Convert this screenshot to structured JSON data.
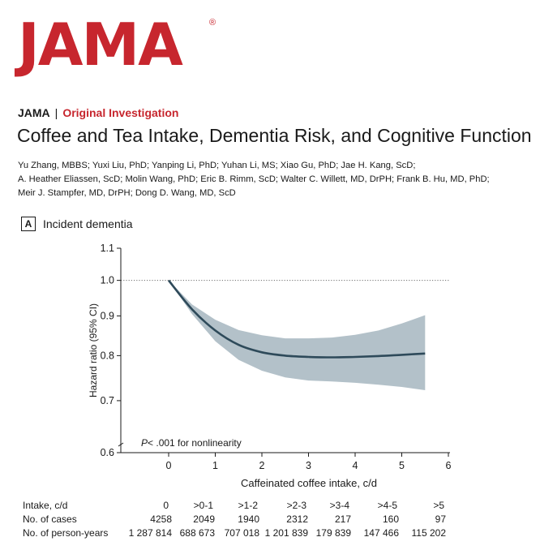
{
  "logo": {
    "text": "JAMA",
    "reg": "®"
  },
  "header": {
    "journal": "JAMA",
    "separator": "|",
    "article_type": "Original Investigation"
  },
  "title": "Coffee and Tea Intake, Dementia Risk, and Cognitive Function",
  "authors": [
    "Yu Zhang, MBBS; Yuxi Liu, PhD; Yanping Li, PhD; Yuhan Li, MS; Xiao Gu, PhD; Jae H. Kang, ScD;",
    "A. Heather Eliassen, ScD; Molin Wang, PhD; Eric B. Rimm, ScD; Walter C. Willett, MD, DrPH; Frank B. Hu, MD, PhD;",
    "Meir J. Stampfer, MD, DrPH; Dong D. Wang, MD, ScD"
  ],
  "panel": {
    "letter": "A",
    "title": "Incident dementia"
  },
  "chart_data": {
    "type": "line",
    "xlabel": "Caffeinated coffee intake, c/d",
    "ylabel": "Hazard ratio (95% CI)",
    "xlim": [
      -0.5,
      6
    ],
    "ylim": [
      0.6,
      1.1
    ],
    "y_scale": "log",
    "x_ticks": [
      0,
      1,
      2,
      3,
      4,
      5,
      6
    ],
    "y_ticks": [
      0.6,
      0.7,
      0.8,
      0.9,
      1.0,
      1.1
    ],
    "y_tick_labels": [
      "0.6",
      "0.7",
      "0.8",
      "0.9",
      "1.0",
      "1.1"
    ],
    "reference_line": 1.0,
    "annotation": {
      "italic": "P",
      "text": "< .001 for nonlinearity"
    },
    "series": [
      {
        "x": [
          0,
          0.5,
          1,
          1.5,
          2,
          2.5,
          3,
          3.5,
          4,
          4.5,
          5,
          5.5
        ],
        "y": [
          1.0,
          0.918,
          0.862,
          0.826,
          0.808,
          0.8,
          0.797,
          0.796,
          0.797,
          0.799,
          0.802,
          0.805
        ],
        "lower": [
          1.0,
          0.905,
          0.835,
          0.79,
          0.765,
          0.75,
          0.743,
          0.741,
          0.738,
          0.734,
          0.729,
          0.722
        ],
        "upper": [
          1.0,
          0.931,
          0.89,
          0.863,
          0.85,
          0.842,
          0.842,
          0.844,
          0.851,
          0.862,
          0.88,
          0.902
        ]
      }
    ]
  },
  "risk_table": {
    "rows": [
      {
        "label": "Intake, c/d",
        "values": [
          "0",
          ">0-1",
          ">1-2",
          ">2-3",
          ">3-4",
          ">4-5",
          ">5"
        ]
      },
      {
        "label": "No. of cases",
        "values": [
          "4258",
          "2049",
          "1940",
          "2312",
          "217",
          "160",
          "97"
        ]
      },
      {
        "label": "No. of person-years",
        "values": [
          "1 287 814",
          "688 673",
          "707 018",
          "1 201 839",
          "179 839",
          "147 466",
          "115 202"
        ]
      }
    ]
  }
}
